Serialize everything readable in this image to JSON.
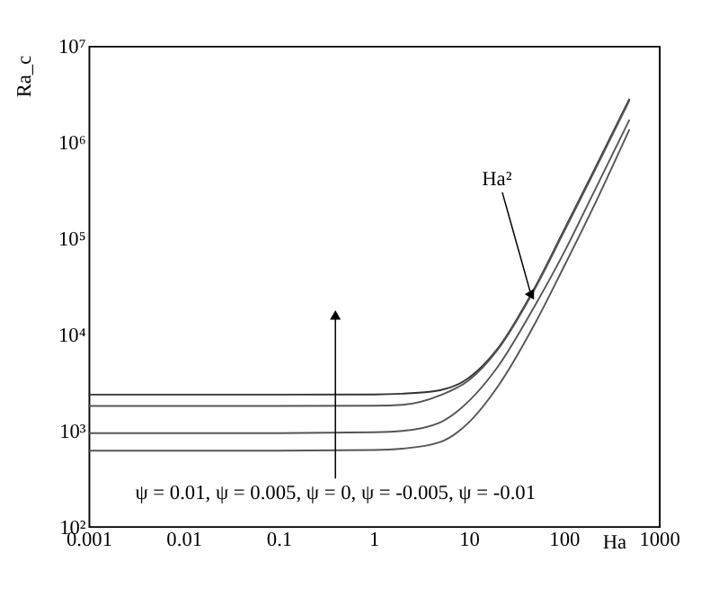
{
  "chart_data": {
    "type": "line",
    "xlabel": "Ha",
    "ylabel": "Ra_c",
    "log": "xy",
    "grid": false,
    "marker": "none",
    "line_style": "solid",
    "x": [
      0.001,
      0.1,
      1,
      2,
      5,
      10,
      20,
      50,
      100,
      200,
      490
    ],
    "series": [
      {
        "color": "#333333",
        "values": [
          2340,
          2340,
          2350,
          2390,
          2600,
          3500,
          7000,
          31000,
          120000,
          470000,
          2800000
        ]
      },
      {
        "color": "#555555",
        "values": [
          1780,
          1780,
          1790,
          1830,
          2300,
          3300,
          6800,
          30000,
          115000,
          450000,
          2700000
        ]
      },
      {
        "color": "#555555",
        "values": [
          930,
          930,
          950,
          980,
          1200,
          2000,
          4500,
          20000,
          70000,
          280000,
          1700000
        ]
      },
      {
        "color": "#555555",
        "values": [
          610,
          610,
          620,
          640,
          750,
          1200,
          2800,
          13000,
          50000,
          200000,
          1350000
        ]
      }
    ],
    "xlim": [
      0.001,
      1000
    ],
    "xticks": [
      0.001,
      0.01,
      0.1,
      1,
      10,
      100,
      1000
    ],
    "ylim": [
      100,
      10000000
    ],
    "yticks": [
      {
        "value": 100,
        "label": "10²"
      },
      {
        "value": 1000,
        "label": "10³"
      },
      {
        "value": 10000,
        "label": "10⁴"
      },
      {
        "value": 100000,
        "label": "10⁵"
      },
      {
        "value": 1000000,
        "label": "10⁶"
      },
      {
        "value": 10000000,
        "label": "10⁷"
      }
    ],
    "annotations": [
      {
        "text": "Ha²",
        "x": 45,
        "y": 26000
      },
      "ψ = 0.01, ψ = 0.005, ψ = 0, ψ = -0.005, ψ = -0.01"
    ]
  }
}
